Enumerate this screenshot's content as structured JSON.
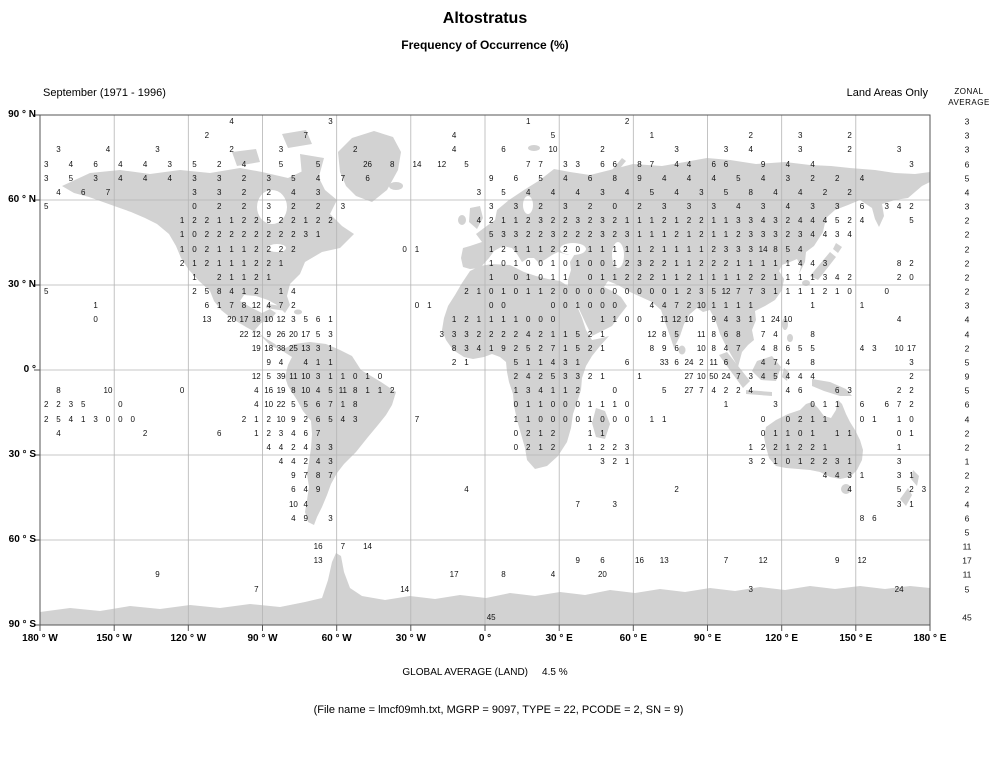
{
  "header": {
    "title": "Altostratus",
    "subtitle": "Frequency of Occurrence (%)",
    "period": "September (1971 - 1996)",
    "coverage_note": "Land Areas Only",
    "zonal_header_line1": "ZONAL",
    "zonal_header_line2": "AVERAGE"
  },
  "footer": {
    "global_average_label": "GLOBAL AVERAGE (LAND)",
    "global_average_value": "4.5 %",
    "caption": "(File name = lmcf09mh.txt, MGRP = 9097, TYPE = 22, PCODE = 2, SN = 9)"
  },
  "chart_data": {
    "type": "heatmap",
    "title": "Altostratus",
    "subtitle": "Frequency of Occurrence (%)",
    "period": "September (1971 - 1996)",
    "coverage": "Land Areas Only",
    "units": "percent frequency of occurrence",
    "global_average_percent": 4.5,
    "lat_ticks": [
      "90 ° N",
      "60 ° N",
      "30 ° N",
      "0 °",
      "30 ° S",
      "60 ° S",
      "90 ° S"
    ],
    "lon_ticks": [
      "180 ° W",
      "150 ° W",
      "120 ° W",
      "90 ° W",
      "60 ° W",
      "30 ° W",
      "0 °",
      "30 ° E",
      "60 ° E",
      "90 ° E",
      "120 ° E",
      "150 ° E",
      "180 ° E"
    ],
    "zonal_averages": [
      "3",
      "3",
      "3",
      "6",
      "5",
      "4",
      "3",
      "2",
      "2",
      "2",
      "2",
      "2",
      "2",
      "3",
      "4",
      "4",
      "2",
      "5",
      "9",
      "5",
      "6",
      "4",
      "2",
      "2",
      "1",
      "2",
      "2",
      "4",
      "6",
      "5",
      "11",
      "17",
      "11",
      "5",
      "",
      "45"
    ],
    "grid": {
      "cols": 72,
      "lon_start_deg": -180,
      "cell_deg": 5,
      "rows": [
        {
          "band": "90N-85N",
          "cells": "15:4 23:3 39:1 47:2"
        },
        {
          "band": "85N-80N",
          "cells": "13:2 21:7 33:4 41:5 49:1 57:2 61:3 65:2"
        },
        {
          "band": "80N-75N",
          "cells": "1:3 5:4 9:3 15:2 19:3 25:2 33:4 37:6 41:10 45:2 51:3 55:3 57:4 61:3 65:2 69:3"
        },
        {
          "band": "75N-70N",
          "cells": "0:3 2:4 4:6 6:4 8:4 10:3 12:5 14:2 16:4 19:5 22:5 26:26 28:8 30:14 32:12 34:5 39:7 40:7 42:3 43:3 45:6 46:6 48:8 49:7 51:4 52:4 54:6 55:6 58:9 60:4 62:4 70:3"
        },
        {
          "band": "70N-65N",
          "cells": "0:3 2:5 4:3 6:4 8:4 10:4 12:3 14:3 16:2 18:3 20:5 22:4 24:7 26:6 36:9 38:6 40:5 42:4 44:6 46:8 48:9 50:4 52:4 54:4 56:5 58:4 60:3 62:2 64:2 66:4"
        },
        {
          "band": "65N-60N",
          "cells": "1:4 3:6 5:7 12:3 14:3 16:2 18:2 20:4 22:3 35:3 37:5 39:4 41:4 43:4 45:3 47:4 49:5 51:4 53:3 55:5 57:8 59:4 61:4 63:2 65:2"
        },
        {
          "band": "60N-55N",
          "cells": "0:5 12:0 14:2 16:2 18:3 20:2 22:2 24:3 36:3 38:3 40:2 42:3 44:2 46:0 48:2 50:3 52:3 54:3 56:4 58:3 60:4 62:3 64:3 66:6 68:3 69:4 70:2"
        },
        {
          "band": "55N-50N",
          "cells": "11:1 12:2 13:2 14:1 15:1 16:2 17:2 18:5 19:2 20:2 21:1 22:2 23:2 35:4 36:2 37:1 38:1 39:2 40:3 41:2 42:2 43:3 44:2 45:3 46:2 47:1 48:1 49:1 50:2 51:1 52:2 53:2 54:1 55:1 56:3 57:3 58:4 59:3 60:2 61:4 62:4 63:4 64:5 65:2 66:4 70:5"
        },
        {
          "band": "50N-45N",
          "cells": "11:1 12:0 13:2 14:2 15:2 16:2 17:2 18:2 19:2 20:2 21:3 22:1 36:5 37:3 38:3 39:2 40:2 41:3 42:2 43:2 44:2 45:3 46:2 47:3 48:1 49:1 50:1 51:2 52:1 53:2 54:1 55:1 56:2 57:3 58:3 59:3 60:2 61:3 62:4 63:4 64:3 65:4"
        },
        {
          "band": "45N-40N",
          "cells": "11:1 12:0 13:2 14:1 15:1 16:1 17:2 18:2 19:2 20:2 29:0 30:1 36:1 37:2 38:1 39:1 40:1 41:2 42:2 43:0 44:1 45:1 46:1 47:1 48:1 49:2 50:1 51:1 52:1 53:1 54:2 55:3 56:3 57:3 58:14 59:8 60:5 61:4"
        },
        {
          "band": "40N-35N",
          "cells": "11:2 12:1 13:2 14:1 15:1 16:1 17:2 18:2 19:1 36:1 37:0 38:1 39:0 40:0 41:1 42:0 43:1 44:0 45:0 46:1 47:2 48:3 49:2 50:2 51:1 52:1 53:2 54:2 55:2 56:1 57:1 58:1 59:1 60:1 61:4 62:4 63:3 69:8 70:2"
        },
        {
          "band": "35N-30N",
          "cells": "12:1 14:2 15:1 16:1 17:2 18:1 36:1 38:0 39:1 40:0 41:1 42:1 44:0 45:1 46:1 47:2 48:2 49:2 50:1 51:1 52:2 53:1 54:1 55:1 56:1 57:2 58:2 59:1 60:1 61:1 62:1 63:3 64:4 65:2 69:2 70:0"
        },
        {
          "band": "30N-25N",
          "cells": "0:5 12:2 13:5 14:8 15:4 16:1 17:2 19:1 20:4 34:2 35:1 36:0 37:1 38:0 39:1 40:1 41:2 42:0 43:0 44:0 45:0 46:0 47:0 48:0 49:0 50:0 51:1 52:2 53:3 54:5 55:12 56:7 57:7 58:3 59:1 60:1 61:1 62:1 63:2 64:1 65:0 68:0"
        },
        {
          "band": "25N-20N",
          "cells": "4:1 13:6 14:1 15:7 16:8 17:12 18:4 19:7 20:2 30:0 31:1 36:0 37:0 41:0 42:0 43:1 44:0 45:0 46:0 49:4 50:4 51:7 52:2 53:10 54:1 55:1 56:1 57:1 62:1 66:1"
        },
        {
          "band": "20N-15N",
          "cells": "4:0 13:13 15:20 16:17 17:18 18:10 19:12 20:3 21:5 22:6 23:1 33:1 34:2 35:1 36:1 37:1 38:1 39:0 40:0 41:0 45:1 46:1 47:0 48:0 50:11 51:12 52:10 54:9 55:4 56:3 57:1 58:1 59:24 60:10 69:4"
        },
        {
          "band": "15N-10N",
          "cells": "16:22 17:12 18:9 19:26 20:20 21:17 22:5 23:3 32:3 33:3 34:3 35:2 36:2 37:2 38:2 39:4 40:2 41:1 42:1 43:5 44:2 45:1 49:12 50:8 51:5 53:11 54:8 55:6 56:8 58:7 59:4 62:8"
        },
        {
          "band": "10N-5N",
          "cells": "17:19 18:18 19:38 20:25 21:13 22:3 23:1 33:8 34:3 35:4 36:1 37:9 38:2 39:5 40:2 41:7 42:1 43:5 44:2 45:1 49:8 50:9 51:6 53:10 54:8 55:4 56:7 58:4 59:8 60:6 61:5 62:5 66:4 67:3 69:10 70:17"
        },
        {
          "band": "5N-0",
          "cells": "18:9 19:4 21:4 22:1 23:1 33:2 34:1 38:5 39:1 40:1 41:4 42:3 43:1 47:6 50:33 51:6 52:24 53:2 54:11 55:6 58:4 59:7 60:4 62:8 70:3"
        },
        {
          "band": "0-5S",
          "cells": "17:12 18:5 19:39 20:11 21:10 22:3 23:1 24:1 25:0 26:1 27:0 38:2 39:4 40:2 41:5 42:3 43:3 44:2 45:1 48:1 52:27 53:10 54:50 55:24 56:7 57:3 58:4 59:5 60:4 61:4 62:4 70:2"
        },
        {
          "band": "5S-10S",
          "cells": "1:8 5:10 11:0 17:4 18:16 19:19 20:8 21:10 22:4 23:5 24:11 25:8 26:1 27:1 28:2 38:1 39:3 40:4 41:1 42:1 43:2 46:0 50:5 52:27 53:7 54:4 55:2 56:2 57:4 60:4 61:6 64:6 65:3 69:2 70:2"
        },
        {
          "band": "10S-15S",
          "cells": "0:2 1:2 2:3 3:5 6:0 17:4 18:10 19:22 20:5 21:5 22:6 23:7 24:1 25:8 38:0 39:1 40:1 41:0 42:0 43:0 44:1 45:1 46:1 47:0 55:1 59:3 62:0 63:1 64:1 66:6 68:6 69:7 70:2"
        },
        {
          "band": "15S-20S",
          "cells": "0:2 1:5 2:4 3:1 4:3 5:0 6:0 7:0 16:2 17:1 18:2 19:10 20:9 21:2 22:6 23:5 24:4 25:3 30:7 38:1 39:1 40:0 41:0 42:0 43:0 44:1 45:0 46:0 47:0 49:1 50:1 58:0 60:0 61:2 62:1 63:1 66:0 67:1 69:1 70:0"
        },
        {
          "band": "20S-25S",
          "cells": "1:4 8:2 14:6 17:1 18:2 19:3 20:4 21:6 22:7 38:0 39:2 40:1 41:2 44:1 45:1 58:0 59:1 60:1 61:0 62:1 64:1 65:1 69:0 70:1"
        },
        {
          "band": "25S-30S",
          "cells": "18:4 19:4 20:2 21:4 22:3 23:3 38:0 39:2 40:1 41:2 44:1 45:2 46:2 47:3 57:1 58:2 59:2 60:1 61:2 62:2 63:1 69:1"
        },
        {
          "band": "30S-35S",
          "cells": "19:4 20:4 21:2 22:4 23:3 45:3 46:2 47:1 57:3 58:2 59:1 60:0 61:1 62:2 63:2 64:3 65:1 69:3"
        },
        {
          "band": "35S-40S",
          "cells": "20:9 21:7 22:8 23:7 63:4 64:4 65:3 66:1 69:3 70:1"
        },
        {
          "band": "40S-45S",
          "cells": "20:6 21:4 22:9 34:4 51:2 65:4 69:5 70:2 71:3"
        },
        {
          "band": "45S-50S",
          "cells": "20:10 21:4 43:7 46:3 69:3 70:1"
        },
        {
          "band": "50S-55S",
          "cells": "20:4 21:9 23:3 66:8 67:6"
        },
        {
          "band": "55S-60S",
          "cells": ""
        },
        {
          "band": "60S-65S",
          "cells": "22:16 24:7 26:14"
        },
        {
          "band": "65S-70S",
          "cells": "22:13 43:9 45:6 48:16 50:13 55:7 58:12 64:9 66:12"
        },
        {
          "band": "70S-75S",
          "cells": "9:9 33:17 37:8 41:4 45:20"
        },
        {
          "band": "75S-80S",
          "cells": "17:7 29:14 57:3 69:24"
        },
        {
          "band": "80S-85S",
          "cells": ""
        },
        {
          "band": "85S-90S",
          "cells": "36:45"
        }
      ]
    }
  }
}
